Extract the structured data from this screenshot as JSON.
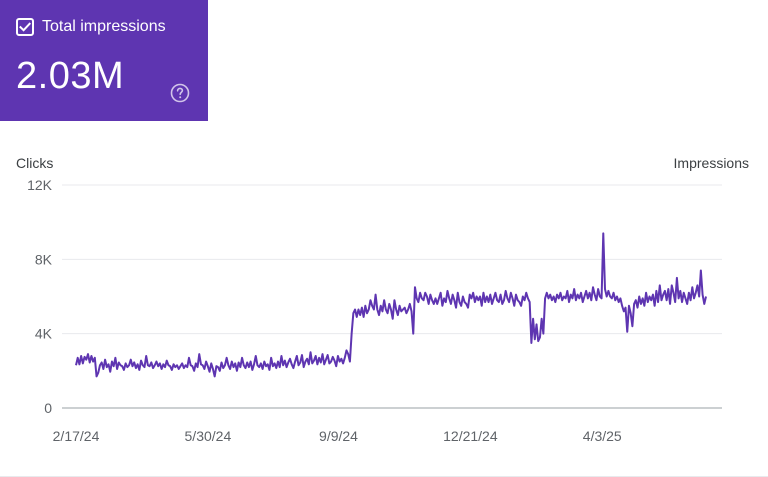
{
  "metric": {
    "checked": true,
    "label": "Total impressions",
    "value": "2.03M",
    "help_icon": "help-circle-icon",
    "check_icon": "checkbox-checked-icon",
    "background_color": "#5e35b1",
    "text_color": "#ffffff"
  },
  "chart_data": {
    "type": "line",
    "y_axis_title_left": "Clicks",
    "y_axis_title_right": "Impressions",
    "y_ticks": [
      "12K",
      "8K",
      "4K",
      "0"
    ],
    "y_tick_values": [
      12000,
      8000,
      4000,
      0
    ],
    "x_ticks": [
      "2/17/24",
      "5/30/24",
      "9/9/24",
      "12/21/24",
      "4/3/25"
    ],
    "x_tick_dates": [
      "2024-02-17",
      "2024-05-30",
      "2024-09-09",
      "2024-12-21",
      "2025-04-03"
    ],
    "ylim": [
      0,
      12000
    ],
    "xlim": [
      "2024-02-17",
      "2025-06-23"
    ],
    "grid": true,
    "line_color": "#5e35b1",
    "series": [
      {
        "values": [
          2300,
          2700,
          2350,
          2800,
          2400,
          2750,
          2600,
          2900,
          2450,
          2800,
          2500,
          2700,
          1700,
          1900,
          2300,
          2450,
          2100,
          2600,
          2200,
          2350,
          1950,
          2500,
          2250,
          2700,
          2100,
          2450,
          2300,
          2250,
          2050,
          2400,
          2200,
          2300,
          2600,
          2250,
          2450,
          2150,
          2350,
          2050,
          2550,
          2300,
          2200,
          2800,
          2300,
          2250,
          2450,
          2150,
          2300,
          2500,
          2250,
          2400,
          2100,
          2350,
          2200,
          2550,
          2300,
          2250,
          2050,
          2350,
          2200,
          2300,
          2100,
          2250,
          2400,
          2150,
          2300,
          2200,
          2700,
          2300,
          2250,
          2000,
          2400,
          2200,
          2900,
          2350,
          2300,
          2100,
          2500,
          2250,
          1950,
          2400,
          2100,
          1700,
          2250,
          2200,
          2000,
          2450,
          2150,
          2300,
          2700,
          2300,
          2100,
          2500,
          2200,
          2400,
          2000,
          2450,
          2200,
          2700,
          2300,
          2150,
          2450,
          2200,
          2500,
          2050,
          2350,
          2800,
          2300,
          2200,
          2400,
          2100,
          2500,
          2250,
          2350,
          2050,
          2700,
          2250,
          2400,
          2150,
          2500,
          2200,
          2800,
          2300,
          2550,
          2200,
          2450,
          2650,
          2350,
          2150,
          2500,
          2800,
          2300,
          2450,
          2850,
          2200,
          2500,
          2650,
          2350,
          3000,
          2400,
          2550,
          2800,
          2350,
          2700,
          2450,
          2900,
          2350,
          2600,
          2850,
          2400,
          2500,
          2750,
          2550,
          2250,
          2800,
          2500,
          2650,
          2400,
          2700,
          3100,
          2900,
          2500,
          4000,
          5100,
          5300,
          4900,
          5300,
          5000,
          5400,
          4900,
          5500,
          5100,
          5300,
          5800,
          5500,
          5300,
          6100,
          5300,
          5000,
          5500,
          5200,
          5800,
          5300,
          5100,
          5600,
          5300,
          4800,
          5800,
          5300,
          5000,
          5500,
          5200,
          5300,
          5400,
          5100,
          5300,
          5600,
          5200,
          4000,
          6500,
          5900,
          5700,
          6200,
          5900,
          5800,
          6200,
          6000,
          5600,
          6100,
          5800,
          5600,
          5900,
          5600,
          5900,
          6200,
          5500,
          5900,
          5700,
          6300,
          5900,
          5600,
          6100,
          5800,
          5400,
          6200,
          5700,
          5500,
          6000,
          5700,
          5600,
          5400,
          6100,
          5900,
          6200,
          5700,
          6000,
          5800,
          6000,
          5500,
          6200,
          5700,
          6000,
          5700,
          6100,
          5600,
          5900,
          6200,
          5800,
          5700,
          6100,
          5600,
          5800,
          6300,
          5900,
          5700,
          6200,
          5900,
          5500,
          6100,
          5800,
          5700,
          5500,
          6000,
          5800,
          6200,
          5900,
          5700,
          3500,
          4800,
          3700,
          4500,
          3600,
          3800,
          4800,
          4000,
          5900,
          6200,
          5900,
          6100,
          5800,
          6000,
          5700,
          6100,
          5900,
          6200,
          5800,
          6000,
          5900,
          6300,
          5700,
          6100,
          5900,
          6400,
          5800,
          6100,
          5900,
          6200,
          5700,
          6000,
          6300,
          5900,
          6200,
          5800,
          6500,
          6100,
          5800,
          6400,
          6000,
          5900,
          9400,
          6400,
          6000,
          6300,
          6000,
          5900,
          6200,
          5800,
          6000,
          5700,
          5900,
          5500,
          5200,
          5400,
          4100,
          5500,
          5100,
          4400,
          5600,
          5800,
          5400,
          6000,
          5600,
          5900,
          5500,
          6200,
          5700,
          6000,
          5800,
          6100,
          5500,
          6300,
          5700,
          6600,
          5800,
          6100,
          6300,
          5800,
          6400,
          5600,
          6600,
          6200,
          5700,
          7000,
          5900,
          6300,
          5700,
          6200,
          5900,
          5600,
          6200,
          5800,
          6500,
          5900,
          6200,
          6600,
          6000,
          7400,
          6100,
          5600,
          6000
        ],
        "start": "2024-02-17",
        "end": "2025-06-23"
      }
    ]
  }
}
